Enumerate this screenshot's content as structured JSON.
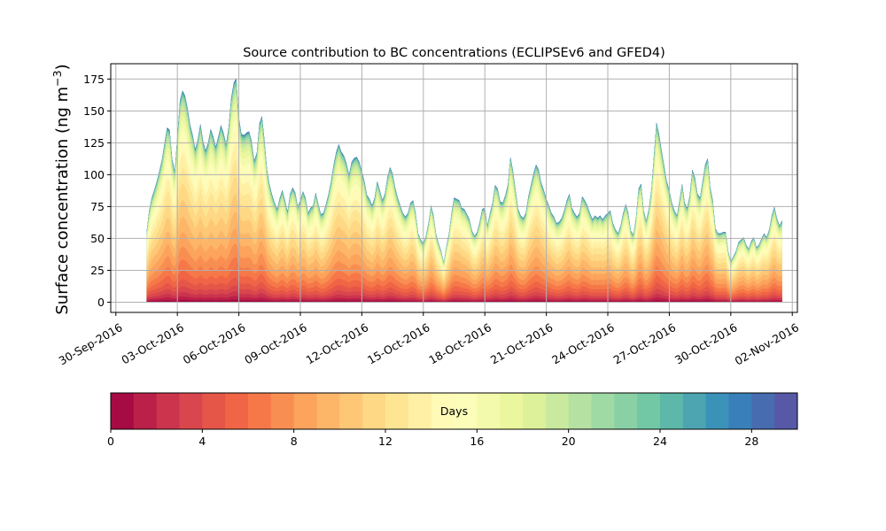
{
  "colors": {
    "background": "#ffffff",
    "grid": "#b0b0b0",
    "axis": "#000000",
    "spectral_r": [
      "#9e0142",
      "#d53e4f",
      "#f46d43",
      "#fdae61",
      "#fee08b",
      "#ffffbf",
      "#e6f598",
      "#abdda4",
      "#66c2a5",
      "#3288bd",
      "#5e4fa2"
    ]
  },
  "chart_data": {
    "type": "area",
    "stacked": true,
    "title": "Source contribution to BC concentrations (ECLIPSEv6 and GFED4)",
    "ylabel_main": "Surface concentration (ng m",
    "ylabel_sup": "−3",
    "ylabel_close": ")",
    "xlabel": "",
    "x_axis_type": "date",
    "xlim": [
      "2016-09-29T18:00",
      "2016-11-02T06:00"
    ],
    "ylim": [
      -8,
      187
    ],
    "grid": true,
    "x_ticks": [
      {
        "date": "2016-09-30",
        "label": "30-Sep-2016"
      },
      {
        "date": "2016-10-03",
        "label": "03-Oct-2016"
      },
      {
        "date": "2016-10-06",
        "label": "06-Oct-2016"
      },
      {
        "date": "2016-10-09",
        "label": "09-Oct-2016"
      },
      {
        "date": "2016-10-12",
        "label": "12-Oct-2016"
      },
      {
        "date": "2016-10-15",
        "label": "15-Oct-2016"
      },
      {
        "date": "2016-10-18",
        "label": "18-Oct-2016"
      },
      {
        "date": "2016-10-21",
        "label": "21-Oct-2016"
      },
      {
        "date": "2016-10-24",
        "label": "24-Oct-2016"
      },
      {
        "date": "2016-10-27",
        "label": "27-Oct-2016"
      },
      {
        "date": "2016-10-30",
        "label": "30-Oct-2016"
      },
      {
        "date": "2016-11-02",
        "label": "02-Nov-2016"
      }
    ],
    "y_ticks": [
      {
        "value": 0,
        "label": "0"
      },
      {
        "value": 25,
        "label": "25"
      },
      {
        "value": 50,
        "label": "50"
      },
      {
        "value": 75,
        "label": "75"
      },
      {
        "value": 100,
        "label": "100"
      },
      {
        "value": 125,
        "label": "125"
      },
      {
        "value": 150,
        "label": "150"
      },
      {
        "value": 175,
        "label": "175"
      }
    ],
    "total_series": {
      "name": "",
      "x": [
        "2016-10-01T12:00",
        "2016-10-01T15:00",
        "2016-10-01T18:00",
        "2016-10-01T21:00",
        "2016-10-02T00:00",
        "2016-10-02T03:00",
        "2016-10-02T06:00",
        "2016-10-02T09:00",
        "2016-10-02T12:00",
        "2016-10-02T15:00",
        "2016-10-02T18:00",
        "2016-10-02T21:00",
        "2016-10-03T00:00",
        "2016-10-03T03:00",
        "2016-10-03T06:00",
        "2016-10-03T09:00",
        "2016-10-03T12:00",
        "2016-10-03T15:00",
        "2016-10-03T18:00",
        "2016-10-03T21:00",
        "2016-10-04T00:00",
        "2016-10-04T03:00",
        "2016-10-04T06:00",
        "2016-10-04T09:00",
        "2016-10-04T12:00",
        "2016-10-04T15:00",
        "2016-10-04T18:00",
        "2016-10-04T21:00",
        "2016-10-05T00:00",
        "2016-10-05T03:00",
        "2016-10-05T06:00",
        "2016-10-05T09:00",
        "2016-10-05T12:00",
        "2016-10-05T15:00",
        "2016-10-05T18:00",
        "2016-10-05T21:00",
        "2016-10-06T00:00",
        "2016-10-06T03:00",
        "2016-10-06T06:00",
        "2016-10-06T09:00",
        "2016-10-06T12:00",
        "2016-10-06T15:00",
        "2016-10-06T18:00",
        "2016-10-06T21:00",
        "2016-10-07T00:00",
        "2016-10-07T03:00",
        "2016-10-07T06:00",
        "2016-10-07T09:00",
        "2016-10-07T12:00",
        "2016-10-07T15:00",
        "2016-10-07T18:00",
        "2016-10-07T21:00",
        "2016-10-08T00:00",
        "2016-10-08T03:00",
        "2016-10-08T06:00",
        "2016-10-08T09:00",
        "2016-10-08T12:00",
        "2016-10-08T15:00",
        "2016-10-08T18:00",
        "2016-10-08T21:00",
        "2016-10-09T00:00",
        "2016-10-09T03:00",
        "2016-10-09T06:00",
        "2016-10-09T09:00",
        "2016-10-09T12:00",
        "2016-10-09T15:00",
        "2016-10-09T18:00",
        "2016-10-09T21:00",
        "2016-10-10T00:00",
        "2016-10-10T03:00",
        "2016-10-10T06:00",
        "2016-10-10T09:00",
        "2016-10-10T12:00",
        "2016-10-10T15:00",
        "2016-10-10T18:00",
        "2016-10-10T21:00",
        "2016-10-11T00:00",
        "2016-10-11T03:00",
        "2016-10-11T06:00",
        "2016-10-11T09:00",
        "2016-10-11T12:00",
        "2016-10-11T15:00",
        "2016-10-11T18:00",
        "2016-10-11T21:00",
        "2016-10-12T00:00",
        "2016-10-12T03:00",
        "2016-10-12T06:00",
        "2016-10-12T09:00",
        "2016-10-12T12:00",
        "2016-10-12T15:00",
        "2016-10-12T18:00",
        "2016-10-12T21:00",
        "2016-10-13T00:00",
        "2016-10-13T03:00",
        "2016-10-13T06:00",
        "2016-10-13T09:00",
        "2016-10-13T12:00",
        "2016-10-13T15:00",
        "2016-10-13T18:00",
        "2016-10-13T21:00",
        "2016-10-14T00:00",
        "2016-10-14T03:00",
        "2016-10-14T06:00",
        "2016-10-14T09:00",
        "2016-10-14T12:00",
        "2016-10-14T15:00",
        "2016-10-14T18:00",
        "2016-10-14T21:00",
        "2016-10-15T00:00",
        "2016-10-15T03:00",
        "2016-10-15T06:00",
        "2016-10-15T09:00",
        "2016-10-15T12:00",
        "2016-10-15T15:00",
        "2016-10-15T18:00",
        "2016-10-15T21:00",
        "2016-10-16T00:00",
        "2016-10-16T03:00",
        "2016-10-16T06:00",
        "2016-10-16T09:00",
        "2016-10-16T12:00",
        "2016-10-16T15:00",
        "2016-10-16T18:00",
        "2016-10-16T21:00",
        "2016-10-17T00:00",
        "2016-10-17T03:00",
        "2016-10-17T06:00",
        "2016-10-17T09:00",
        "2016-10-17T12:00",
        "2016-10-17T15:00",
        "2016-10-17T18:00",
        "2016-10-17T21:00",
        "2016-10-18T00:00",
        "2016-10-18T03:00",
        "2016-10-18T06:00",
        "2016-10-18T09:00",
        "2016-10-18T12:00",
        "2016-10-18T15:00",
        "2016-10-18T18:00",
        "2016-10-18T21:00",
        "2016-10-19T00:00",
        "2016-10-19T03:00",
        "2016-10-19T06:00",
        "2016-10-19T09:00",
        "2016-10-19T12:00",
        "2016-10-19T15:00",
        "2016-10-19T18:00",
        "2016-10-19T21:00",
        "2016-10-20T00:00",
        "2016-10-20T03:00",
        "2016-10-20T06:00",
        "2016-10-20T09:00",
        "2016-10-20T12:00",
        "2016-10-20T15:00",
        "2016-10-20T18:00",
        "2016-10-20T21:00",
        "2016-10-21T00:00",
        "2016-10-21T03:00",
        "2016-10-21T06:00",
        "2016-10-21T09:00",
        "2016-10-21T12:00",
        "2016-10-21T15:00",
        "2016-10-21T18:00",
        "2016-10-21T21:00",
        "2016-10-22T00:00",
        "2016-10-22T03:00",
        "2016-10-22T06:00",
        "2016-10-22T09:00",
        "2016-10-22T12:00",
        "2016-10-22T15:00",
        "2016-10-22T18:00",
        "2016-10-22T21:00",
        "2016-10-23T00:00",
        "2016-10-23T03:00",
        "2016-10-23T06:00",
        "2016-10-23T09:00",
        "2016-10-23T12:00",
        "2016-10-23T15:00",
        "2016-10-23T18:00",
        "2016-10-23T21:00",
        "2016-10-24T00:00",
        "2016-10-24T03:00",
        "2016-10-24T06:00",
        "2016-10-24T09:00",
        "2016-10-24T12:00",
        "2016-10-24T15:00",
        "2016-10-24T18:00",
        "2016-10-24T21:00",
        "2016-10-25T00:00",
        "2016-10-25T03:00",
        "2016-10-25T06:00",
        "2016-10-25T09:00",
        "2016-10-25T12:00",
        "2016-10-25T15:00",
        "2016-10-25T18:00",
        "2016-10-25T21:00",
        "2016-10-26T00:00",
        "2016-10-26T03:00",
        "2016-10-26T06:00",
        "2016-10-26T09:00",
        "2016-10-26T12:00",
        "2016-10-26T15:00",
        "2016-10-26T18:00",
        "2016-10-26T21:00",
        "2016-10-27T00:00",
        "2016-10-27T03:00",
        "2016-10-27T06:00",
        "2016-10-27T09:00",
        "2016-10-27T12:00",
        "2016-10-27T15:00",
        "2016-10-27T18:00",
        "2016-10-27T21:00",
        "2016-10-28T00:00",
        "2016-10-28T03:00",
        "2016-10-28T06:00",
        "2016-10-28T09:00",
        "2016-10-28T12:00",
        "2016-10-28T15:00",
        "2016-10-28T18:00",
        "2016-10-28T21:00",
        "2016-10-29T00:00",
        "2016-10-29T03:00",
        "2016-10-29T06:00",
        "2016-10-29T09:00",
        "2016-10-29T12:00",
        "2016-10-29T15:00",
        "2016-10-29T18:00",
        "2016-10-29T21:00",
        "2016-10-30T00:00",
        "2016-10-30T03:00",
        "2016-10-30T06:00",
        "2016-10-30T09:00",
        "2016-10-30T12:00",
        "2016-10-30T15:00",
        "2016-10-30T18:00",
        "2016-10-30T21:00",
        "2016-10-31T00:00",
        "2016-10-31T03:00",
        "2016-10-31T06:00",
        "2016-10-31T09:00",
        "2016-10-31T12:00",
        "2016-10-31T15:00",
        "2016-10-31T18:00",
        "2016-10-31T21:00",
        "2016-11-01T00:00",
        "2016-11-01T03:00",
        "2016-11-01T06:00",
        "2016-11-01T09:00",
        "2016-11-01T12:00"
      ],
      "y": [
        55,
        72,
        82,
        88,
        95,
        103,
        112,
        125,
        137,
        135,
        112,
        103,
        130,
        158,
        166,
        162,
        152,
        139,
        131,
        120,
        128,
        140,
        127,
        119,
        125,
        136,
        130,
        122,
        130,
        139,
        133,
        124,
        137,
        160,
        172,
        176,
        145,
        132,
        131,
        133,
        134,
        126,
        111,
        117,
        140,
        146,
        127,
        104,
        92,
        84,
        78,
        73,
        82,
        88,
        80,
        71,
        85,
        90,
        86,
        75,
        80,
        87,
        82,
        70,
        74,
        76,
        86,
        77,
        69,
        70,
        77,
        85,
        95,
        108,
        118,
        124,
        118,
        115,
        109,
        100,
        110,
        113,
        114,
        110,
        103,
        95,
        84,
        81,
        76,
        82,
        95,
        88,
        80,
        85,
        98,
        106,
        101,
        90,
        82,
        76,
        70,
        67,
        70,
        78,
        80,
        70,
        54,
        49,
        46,
        52,
        62,
        76,
        68,
        53,
        46,
        40,
        31,
        44,
        54,
        70,
        82,
        81,
        80,
        74,
        73,
        69,
        65,
        56,
        52,
        55,
        63,
        73,
        74,
        60,
        70,
        78,
        92,
        89,
        79,
        78,
        84,
        92,
        114,
        103,
        88,
        73,
        68,
        66,
        70,
        83,
        92,
        101,
        108,
        104,
        94,
        88,
        81,
        76,
        70,
        67,
        62,
        63,
        66,
        72,
        80,
        85,
        74,
        70,
        67,
        70,
        83,
        80,
        76,
        70,
        65,
        68,
        66,
        68,
        65,
        68,
        70,
        72,
        62,
        57,
        54,
        60,
        70,
        77,
        70,
        56,
        53,
        66,
        89,
        93,
        72,
        64,
        73,
        88,
        115,
        141,
        132,
        119,
        107,
        95,
        88,
        78,
        72,
        68,
        80,
        93,
        78,
        74,
        84,
        104,
        98,
        85,
        82,
        95,
        108,
        113,
        90,
        80,
        58,
        54,
        54,
        55,
        55,
        40,
        32,
        36,
        40,
        47,
        49,
        51,
        45,
        42,
        48,
        51,
        43,
        45,
        50,
        54,
        51,
        57,
        68,
        75,
        66,
        60,
        64
      ]
    },
    "colorbar": {
      "label": "Days",
      "range": [
        0,
        30
      ],
      "levels": 30,
      "ticks": [
        0,
        4,
        8,
        12,
        16,
        20,
        24,
        28
      ],
      "tick_labels": [
        "0",
        "4",
        "8",
        "12",
        "16",
        "20",
        "24",
        "28"
      ],
      "colormap": "Spectral_r",
      "orientation": "horizontal"
    }
  }
}
